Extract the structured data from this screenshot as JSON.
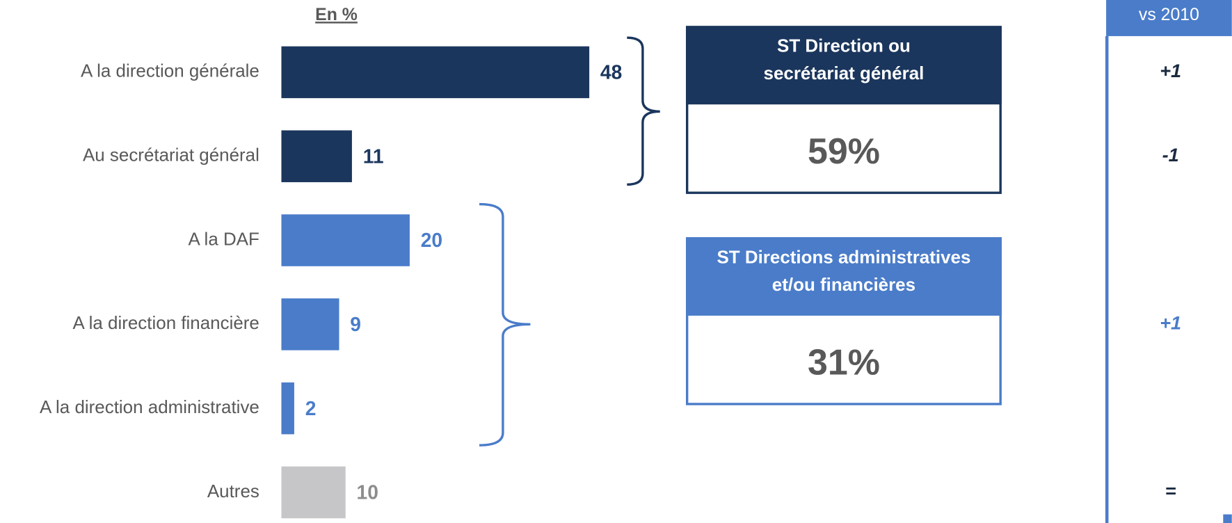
{
  "chart_data": {
    "type": "bar",
    "orientation": "horizontal",
    "unit_label": "En %",
    "categories": [
      "A la direction générale",
      "Au secrétariat général",
      "A la DAF",
      "A la direction financière",
      "A la direction administrative",
      "Autres"
    ],
    "values": [
      48,
      11,
      20,
      9,
      2,
      10
    ],
    "colors": [
      "#1b365d",
      "#1b365d",
      "#4a7cc9",
      "#4a7cc9",
      "#4a7cc9",
      "#c6c6c8"
    ],
    "value_label_colors": [
      "#1b365d",
      "#1b365d",
      "#4a7cc9",
      "#4a7cc9",
      "#4a7cc9",
      "#8c8c8c"
    ],
    "groups": [
      {
        "title_lines": [
          "ST Direction ou",
          "secrétariat général"
        ],
        "total": "59%",
        "color": "#1b365d"
      },
      {
        "title_lines": [
          "ST Directions administratives",
          "et/ou financières"
        ],
        "total": "31%",
        "color": "#4a7cc9"
      }
    ],
    "change_header": "vs 2010",
    "changes": [
      "+1",
      "-1",
      null,
      "+1",
      null,
      "="
    ],
    "change_colors": [
      "#1b2a40",
      "#1b2a40",
      null,
      "#4a7cc9",
      null,
      "#1b2a40"
    ]
  }
}
